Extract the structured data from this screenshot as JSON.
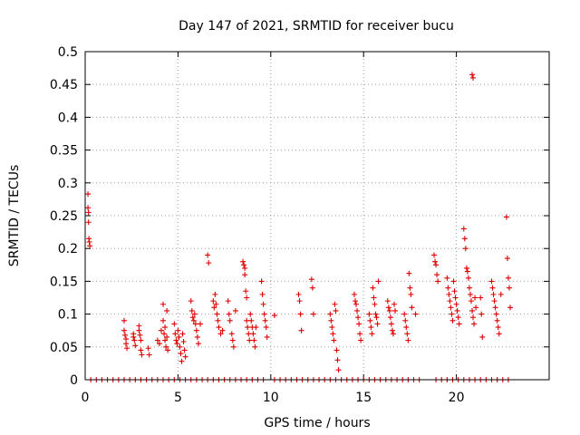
{
  "chart_data": {
    "type": "scatter",
    "title": "Day 147 of 2021, SRMTID for receiver bucu",
    "xlabel": "GPS time / hours",
    "ylabel": "SRMTID / TECUs",
    "xlim": [
      0,
      25
    ],
    "ylim": [
      0,
      0.5
    ],
    "x_ticks": [
      0,
      5,
      10,
      15,
      20
    ],
    "y_ticks": [
      0,
      0.05,
      0.1,
      0.15,
      0.2,
      0.25,
      0.3,
      0.35,
      0.4,
      0.45,
      0.5
    ],
    "grid": true,
    "marker": "+",
    "series": [
      {
        "name": "SRMTID",
        "color": "#e00000",
        "x": [
          0.15,
          0.15,
          0.18,
          0.18,
          0.2,
          0.22,
          0.25,
          2.1,
          2.1,
          2.15,
          2.2,
          2.2,
          2.25,
          2.6,
          2.6,
          2.65,
          2.7,
          2.9,
          2.9,
          2.95,
          3.0,
          3.0,
          3.05,
          3.4,
          3.45,
          3.9,
          4.0,
          4.1,
          4.2,
          4.2,
          4.25,
          4.3,
          4.3,
          4.35,
          4.4,
          4.4,
          4.45,
          4.8,
          4.85,
          4.9,
          4.95,
          5.0,
          5.05,
          5.1,
          5.15,
          5.2,
          5.25,
          5.3,
          5.35,
          5.4,
          5.7,
          5.75,
          5.8,
          5.85,
          5.9,
          5.95,
          6.0,
          6.05,
          6.1,
          6.2,
          6.6,
          6.65,
          6.9,
          6.95,
          7.0,
          7.05,
          7.1,
          7.15,
          7.2,
          7.3,
          7.4,
          7.7,
          7.75,
          7.8,
          7.9,
          7.95,
          8.0,
          8.1,
          8.5,
          8.55,
          8.6,
          8.6,
          8.65,
          8.7,
          8.7,
          8.75,
          8.8,
          8.85,
          8.9,
          8.95,
          9.0,
          9.05,
          9.1,
          9.15,
          9.2,
          9.5,
          9.55,
          9.6,
          9.65,
          9.7,
          9.75,
          9.8,
          10.2,
          11.5,
          11.55,
          11.6,
          11.65,
          12.2,
          12.25,
          12.3,
          13.2,
          13.25,
          13.3,
          13.35,
          13.4,
          13.45,
          13.5,
          13.55,
          13.6,
          13.65,
          14.5,
          14.55,
          14.6,
          14.65,
          14.7,
          14.75,
          14.8,
          14.85,
          15.3,
          15.35,
          15.4,
          15.45,
          15.5,
          15.55,
          15.6,
          15.65,
          15.7,
          15.75,
          15.8,
          16.3,
          16.35,
          16.4,
          16.45,
          16.5,
          16.55,
          16.6,
          16.65,
          16.7,
          17.2,
          17.25,
          17.3,
          17.35,
          17.4,
          17.45,
          17.5,
          17.55,
          17.6,
          17.8,
          18.8,
          18.85,
          18.9,
          18.95,
          19.0,
          19.5,
          19.55,
          19.6,
          19.65,
          19.7,
          19.75,
          19.8,
          19.85,
          19.9,
          19.95,
          20.0,
          20.05,
          20.1,
          20.15,
          20.4,
          20.45,
          20.5,
          20.55,
          20.6,
          20.65,
          20.7,
          20.75,
          20.8,
          20.85,
          20.9,
          20.95,
          21.0,
          21.05,
          20.85,
          20.9,
          21.3,
          21.35,
          21.4,
          21.9,
          21.95,
          22.0,
          22.05,
          22.1,
          22.15,
          22.2,
          22.25,
          22.3,
          22.4,
          22.7,
          22.75,
          22.8,
          22.85,
          22.9
        ],
        "y": [
          0.283,
          0.262,
          0.255,
          0.24,
          0.215,
          0.21,
          0.204,
          0.09,
          0.075,
          0.068,
          0.062,
          0.055,
          0.048,
          0.07,
          0.065,
          0.06,
          0.052,
          0.082,
          0.075,
          0.068,
          0.06,
          0.045,
          0.038,
          0.048,
          0.038,
          0.06,
          0.055,
          0.075,
          0.115,
          0.09,
          0.07,
          0.08,
          0.06,
          0.05,
          0.105,
          0.065,
          0.045,
          0.085,
          0.07,
          0.06,
          0.055,
          0.075,
          0.065,
          0.05,
          0.04,
          0.028,
          0.07,
          0.058,
          0.045,
          0.035,
          0.12,
          0.105,
          0.095,
          0.09,
          0.1,
          0.085,
          0.075,
          0.065,
          0.055,
          0.085,
          0.19,
          0.178,
          0.12,
          0.11,
          0.13,
          0.115,
          0.1,
          0.09,
          0.08,
          0.07,
          0.075,
          0.12,
          0.1,
          0.09,
          0.07,
          0.06,
          0.05,
          0.105,
          0.18,
          0.175,
          0.17,
          0.16,
          0.135,
          0.125,
          0.09,
          0.08,
          0.07,
          0.06,
          0.1,
          0.09,
          0.08,
          0.07,
          0.06,
          0.05,
          0.08,
          0.15,
          0.13,
          0.115,
          0.1,
          0.09,
          0.08,
          0.065,
          0.098,
          0.13,
          0.12,
          0.1,
          0.075,
          0.153,
          0.14,
          0.1,
          0.1,
          0.09,
          0.08,
          0.07,
          0.06,
          0.115,
          0.105,
          0.045,
          0.03,
          0.015,
          0.13,
          0.12,
          0.115,
          0.105,
          0.095,
          0.085,
          0.07,
          0.06,
          0.1,
          0.09,
          0.08,
          0.07,
          0.14,
          0.125,
          0.115,
          0.1,
          0.095,
          0.085,
          0.15,
          0.12,
          0.11,
          0.105,
          0.095,
          0.085,
          0.075,
          0.07,
          0.115,
          0.105,
          0.1,
          0.09,
          0.08,
          0.07,
          0.06,
          0.162,
          0.14,
          0.13,
          0.11,
          0.1,
          0.19,
          0.18,
          0.175,
          0.16,
          0.15,
          0.155,
          0.14,
          0.13,
          0.12,
          0.11,
          0.1,
          0.09,
          0.15,
          0.135,
          0.125,
          0.115,
          0.105,
          0.095,
          0.085,
          0.23,
          0.215,
          0.2,
          0.17,
          0.165,
          0.155,
          0.14,
          0.13,
          0.12,
          0.105,
          0.095,
          0.085,
          0.125,
          0.11,
          0.465,
          0.46,
          0.125,
          0.1,
          0.065,
          0.15,
          0.14,
          0.13,
          0.12,
          0.11,
          0.1,
          0.09,
          0.08,
          0.07,
          0.13,
          0.248,
          0.185,
          0.155,
          0.14,
          0.11
        ]
      },
      {
        "name": "zero baseline",
        "color": "#e00000",
        "x": [
          0.3,
          0.6,
          0.9,
          1.2,
          1.5,
          1.8,
          2.1,
          2.4,
          2.7,
          3.0,
          3.3,
          3.6,
          3.9,
          4.2,
          4.5,
          4.8,
          5.1,
          5.4,
          5.7,
          6.0,
          6.3,
          6.6,
          6.9,
          7.2,
          7.5,
          7.8,
          8.1,
          8.4,
          8.7,
          9.0,
          9.3,
          9.6,
          10.2,
          10.5,
          10.8,
          11.1,
          11.4,
          11.7,
          12.0,
          12.3,
          12.6,
          12.9,
          13.2,
          13.5,
          13.8,
          14.1,
          14.4,
          14.7,
          15.0,
          15.3,
          15.6,
          15.9,
          16.2,
          16.5,
          16.8,
          17.1,
          17.4,
          17.7,
          18.0,
          18.9,
          19.2,
          19.5,
          19.8,
          20.1,
          20.4,
          20.7,
          21.0,
          21.3,
          21.6,
          21.9,
          22.2,
          22.5,
          22.8
        ],
        "y": [
          0,
          0,
          0,
          0,
          0,
          0,
          0,
          0,
          0,
          0,
          0,
          0,
          0,
          0,
          0,
          0,
          0,
          0,
          0,
          0,
          0,
          0,
          0,
          0,
          0,
          0,
          0,
          0,
          0,
          0,
          0,
          0,
          0,
          0,
          0,
          0,
          0,
          0,
          0,
          0,
          0,
          0,
          0,
          0,
          0,
          0,
          0,
          0,
          0,
          0,
          0,
          0,
          0,
          0,
          0,
          0,
          0,
          0,
          0,
          0,
          0,
          0,
          0,
          0,
          0,
          0,
          0,
          0,
          0,
          0,
          0,
          0,
          0
        ]
      }
    ]
  }
}
